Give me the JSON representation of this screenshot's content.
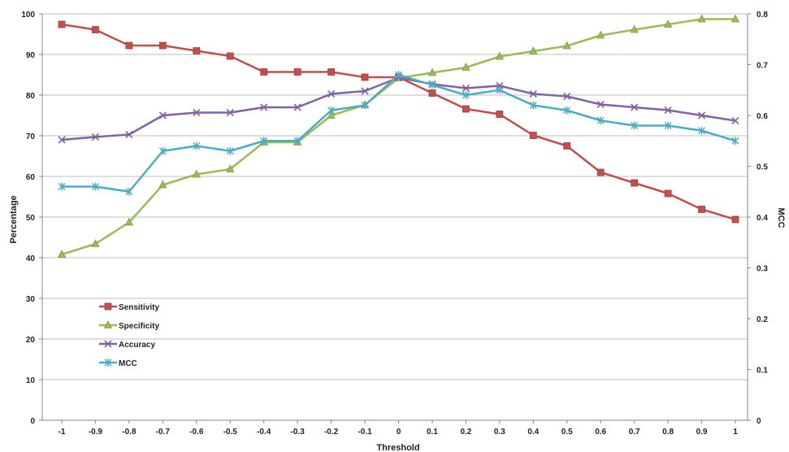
{
  "chart_data": {
    "type": "line",
    "x": [
      -1,
      -0.9,
      -0.8,
      -0.7,
      -0.6,
      -0.5,
      -0.4,
      -0.3,
      -0.2,
      -0.1,
      0,
      0.1,
      0.2,
      0.3,
      0.4,
      0.5,
      0.6,
      0.7,
      0.8,
      0.9,
      1
    ],
    "x_tick_labels": [
      "-1",
      "-0.9",
      "-0.8",
      "-0.7",
      "-0.6",
      "-0.5",
      "-0.4",
      "-0.3",
      "-0.2",
      "-0.1",
      "0",
      "0.1",
      "0.2",
      "0.3",
      "0.4",
      "0.5",
      "0.6",
      "0.7",
      "0.8",
      "0.9",
      "1"
    ],
    "xlabel": "Threshold",
    "ylabel": "Percentage",
    "ylabel_right": "MCC",
    "ylim": [
      0,
      100
    ],
    "ylim_right": [
      0,
      0.8
    ],
    "y_ticks": [
      "0",
      "10",
      "20",
      "30",
      "40",
      "50",
      "60",
      "70",
      "80",
      "90",
      "100"
    ],
    "y_ticks_right": [
      "0",
      "0.1",
      "0.2",
      "0.3",
      "0.4",
      "0.5",
      "0.6",
      "0.7",
      "0.8"
    ],
    "grid": "horizontal",
    "legend_position": "lower-left",
    "series": [
      {
        "name": "Sensitivity",
        "axis": "left",
        "color": "#c0504d",
        "marker": "square",
        "values": [
          97.4,
          96.1,
          92.2,
          92.2,
          90.9,
          89.6,
          85.7,
          85.7,
          85.7,
          84.4,
          84.4,
          80.5,
          76.6,
          75.3,
          70.1,
          67.5,
          61.0,
          58.4,
          55.8,
          51.9,
          49.4
        ]
      },
      {
        "name": "Specificity",
        "axis": "left",
        "color": "#9bbb59",
        "marker": "triangle",
        "values": [
          40.8,
          43.4,
          48.7,
          57.9,
          60.5,
          61.8,
          68.4,
          68.4,
          75.0,
          77.6,
          84.2,
          85.5,
          86.8,
          89.5,
          90.8,
          92.1,
          94.7,
          96.1,
          97.4,
          98.7,
          98.7
        ]
      },
      {
        "name": "Accuracy",
        "axis": "left",
        "color": "#8064a2",
        "marker": "x",
        "values": [
          69.0,
          69.7,
          70.3,
          75.0,
          75.7,
          75.7,
          77.0,
          77.0,
          80.3,
          81.0,
          84.3,
          82.7,
          81.7,
          82.3,
          80.3,
          79.7,
          77.7,
          77.0,
          76.3,
          75.0,
          73.7
        ]
      },
      {
        "name": "MCC",
        "axis": "right",
        "color": "#4bacc6",
        "marker": "asterisk",
        "values": [
          0.46,
          0.46,
          0.45,
          0.53,
          0.54,
          0.53,
          0.55,
          0.55,
          0.61,
          0.62,
          0.68,
          0.66,
          0.64,
          0.65,
          0.62,
          0.61,
          0.59,
          0.58,
          0.58,
          0.57,
          0.55
        ]
      }
    ]
  }
}
